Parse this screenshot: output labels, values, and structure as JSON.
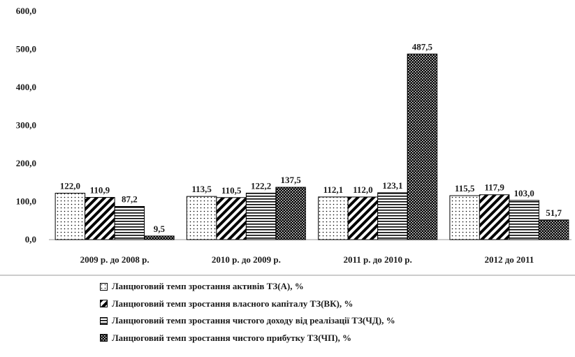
{
  "chart_data": {
    "type": "bar",
    "categories": [
      "2009 р. до 2008 р.",
      "2010 р. до 2009 р.",
      "2011 р. до 2010 р.",
      "2012 до 2011"
    ],
    "series": [
      {
        "name": "Ланцюговий темп зростання активів ТЗ(А), %",
        "values": [
          122.0,
          113.5,
          112.1,
          115.5
        ],
        "labels": [
          "122,0",
          "113,5",
          "112,1",
          "115,5"
        ],
        "pattern": "dots"
      },
      {
        "name": "Ланцюговий темп зростання власного капіталу ТЗ(ВК), %",
        "values": [
          110.9,
          110.5,
          112.0,
          117.9
        ],
        "labels": [
          "110,9",
          "110,5",
          "112,0",
          "117,9"
        ],
        "pattern": "diagonal"
      },
      {
        "name": "Ланцюговий темп зростання чистого доходу від реалізації ТЗ(ЧД), %",
        "values": [
          87.2,
          122.2,
          123.1,
          103.0
        ],
        "labels": [
          "87,2",
          "122,2",
          "123,1",
          "103,0"
        ],
        "pattern": "horizontal"
      },
      {
        "name": "Ланцюговий темп зростання чистого прибутку ТЗ(ЧП), %",
        "values": [
          9.5,
          137.5,
          487.5,
          51.7
        ],
        "labels": [
          "9,5",
          "137,5",
          "487,5",
          "51,7"
        ],
        "pattern": "checker"
      }
    ],
    "yticks": [
      "0,0",
      "100,0",
      "200,0",
      "300,0",
      "400,0",
      "500,0",
      "600,0"
    ],
    "ylim": [
      0,
      600
    ],
    "grid": false,
    "legend_position": "bottom",
    "colors": {
      "bar_stroke": "#000000",
      "text": "#1a1a1a",
      "axis_line": "#999999"
    }
  }
}
